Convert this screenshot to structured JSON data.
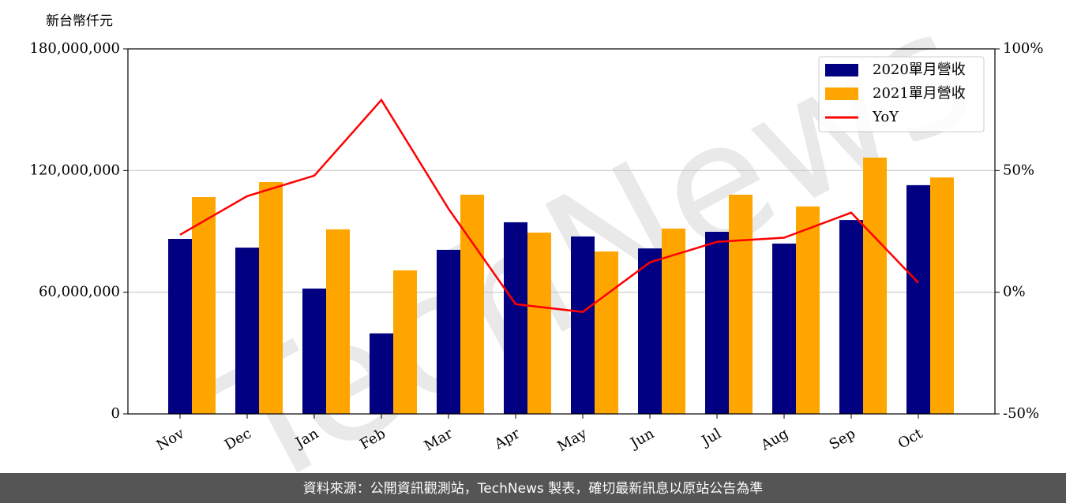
{
  "chart_data": {
    "type": "bar",
    "y_axis_label": "新台幣仟元",
    "watermark": "TechNews",
    "source": "資料來源：公開資訊觀測站，TechNews 製表，確切最新訊息以原站公告為準",
    "categories": [
      "Nov",
      "Dec",
      "Jan",
      "Feb",
      "Mar",
      "Apr",
      "May",
      "Jun",
      "Jul",
      "Aug",
      "Sep",
      "Oct"
    ],
    "series": [
      {
        "name": "2020單月營收",
        "type": "bar",
        "color": "#000080",
        "values": [
          86300000,
          82000000,
          61800000,
          39700000,
          80900000,
          94500000,
          87500000,
          81600000,
          89800000,
          84000000,
          95600000,
          112800000
        ]
      },
      {
        "name": "2021單月營收",
        "type": "bar",
        "color": "#ffa500",
        "values": [
          106900000,
          114300000,
          91000000,
          70800000,
          108100000,
          89400000,
          80100000,
          91400000,
          108100000,
          102300000,
          126400000,
          116600000
        ]
      },
      {
        "name": "YoY",
        "type": "line",
        "axis": "y2",
        "color": "#ff0000",
        "values": [
          23.6,
          39.5,
          47.9,
          79.0,
          34.3,
          -4.9,
          -8.1,
          12.3,
          20.7,
          22.4,
          32.7,
          3.9
        ]
      }
    ],
    "ylim": [
      0,
      180000000
    ],
    "yticks": [
      0,
      {
        "value": 60000000,
        "label": "60,000,000"
      },
      {
        "value": 120000000,
        "label": "120,000,000"
      },
      {
        "value": 180000000,
        "label": "180,000,000"
      }
    ],
    "y2lim": [
      -50,
      100
    ],
    "y2ticks": [
      {
        "value": -50,
        "label": "-50%"
      },
      {
        "value": 0,
        "label": "0%"
      },
      {
        "value": 50,
        "label": "50%"
      },
      {
        "value": 100,
        "label": "100%"
      }
    ],
    "grid": true,
    "legend": "upper right"
  }
}
